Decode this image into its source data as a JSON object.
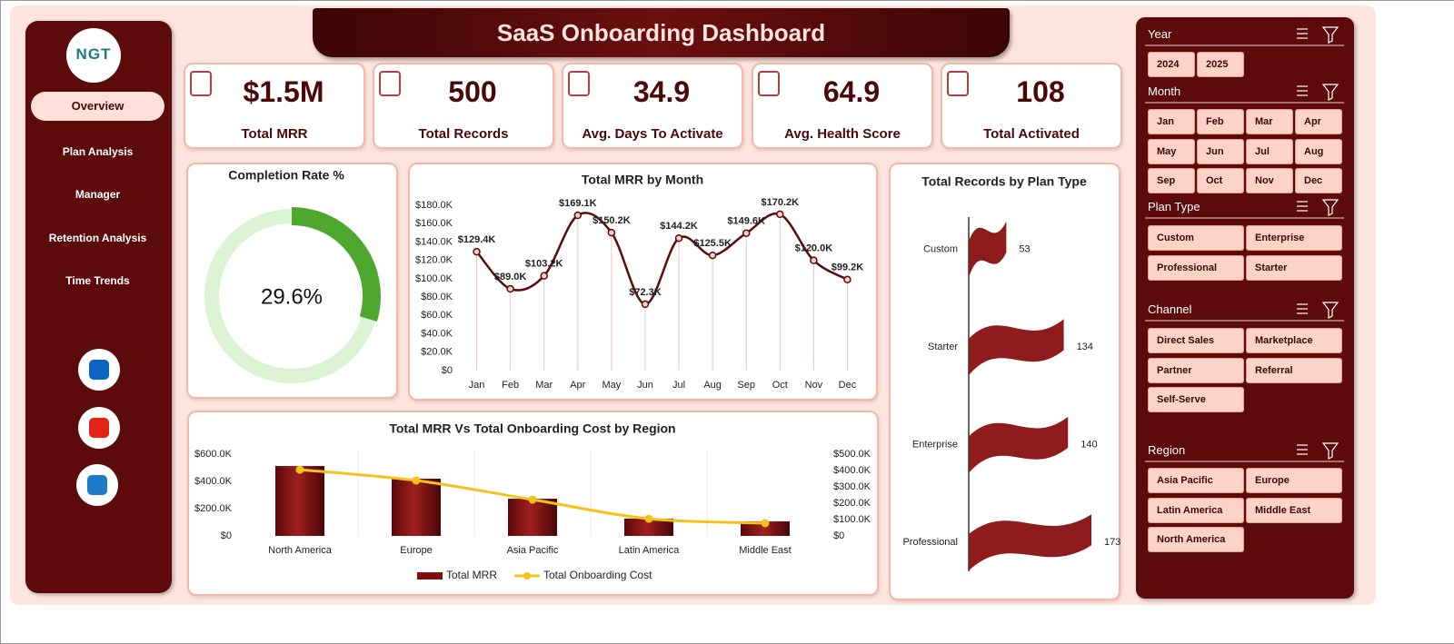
{
  "header": {
    "title": "SaaS Onboarding Dashboard"
  },
  "sidebar": {
    "logo": "NGT",
    "nav": [
      "Overview",
      "Plan Analysis",
      "Manager",
      "Retention Analysis",
      "Time Trends"
    ]
  },
  "kpis": [
    {
      "value": "$1.5M",
      "label": "Total MRR"
    },
    {
      "value": 500,
      "label": "Total Records"
    },
    {
      "value": 34.9,
      "label": "Avg. Days To Activate"
    },
    {
      "value": 64.9,
      "label": "Avg. Health Score"
    },
    {
      "value": 108,
      "label": "Total Activated"
    }
  ],
  "chart_data": [
    {
      "type": "donut",
      "title": "Completion Rate %",
      "values": [
        29.6
      ],
      "value_labels": [
        "29.6%"
      ],
      "color": "#4ea72e",
      "track_color": "#dcf3d3"
    },
    {
      "type": "line",
      "title": "Total MRR by Month",
      "categories": [
        "Jan",
        "Feb",
        "Mar",
        "Apr",
        "May",
        "Jun",
        "Jul",
        "Aug",
        "Sep",
        "Oct",
        "Nov",
        "Dec"
      ],
      "values": [
        129400,
        89000,
        103200,
        169100,
        150200,
        72300,
        144200,
        125500,
        149600,
        170200,
        120000,
        99200
      ],
      "value_labels": [
        "$129.4K",
        "$89.0K",
        "$103.2K",
        "$169.1K",
        "$150.2K",
        "$72.3K",
        "$144.2K",
        "$125.5K",
        "$149.6K",
        "$170.2K",
        "$120.0K",
        "$99.2K"
      ],
      "color": "#5c0a0a",
      "ylim": [
        0,
        180000
      ],
      "yticks": [
        {
          "value": 0,
          "label": "$0"
        },
        {
          "value": 20000,
          "label": "$20.0K"
        },
        {
          "value": 40000,
          "label": "$40.0K"
        },
        {
          "value": 60000,
          "label": "$60.0K"
        },
        {
          "value": 80000,
          "label": "$80.0K"
        },
        {
          "value": 100000,
          "label": "$100.0K"
        },
        {
          "value": 120000,
          "label": "$120.0K"
        },
        {
          "value": 140000,
          "label": "$140.0K"
        },
        {
          "value": 160000,
          "label": "$160.0K"
        },
        {
          "value": 180000,
          "label": "$180.0K"
        }
      ],
      "grid": false
    },
    {
      "type": "combo",
      "title": "Total MRR Vs Total Onboarding Cost by Region",
      "categories": [
        "North America",
        "Europe",
        "Asia Pacific",
        "Latin America",
        "Middle East"
      ],
      "series": [
        {
          "name": "Total MRR",
          "type": "bar",
          "color": "#7a1010",
          "values": [
            513000,
            420000,
            273000,
            127000,
            107000
          ]
        },
        {
          "name": "Total Onboarding Cost",
          "type": "line",
          "axis": "y2",
          "color": "#f4c21b",
          "values": [
            405000,
            339000,
            222000,
            105000,
            78000
          ]
        }
      ],
      "ylim": [
        0,
        600000
      ],
      "yticks": [
        {
          "value": 0,
          "label": "$0"
        },
        {
          "value": 200000,
          "label": "$200.0K"
        },
        {
          "value": 400000,
          "label": "$400.0K"
        },
        {
          "value": 600000,
          "label": "$600.0K"
        }
      ],
      "y2lim": [
        0,
        500000
      ],
      "y2ticks": [
        {
          "value": 0,
          "label": "$0"
        },
        {
          "value": 100000,
          "label": "$100.0K"
        },
        {
          "value": 200000,
          "label": "$200.0K"
        },
        {
          "value": 300000,
          "label": "$300.0K"
        },
        {
          "value": 400000,
          "label": "$400.0K"
        },
        {
          "value": 500000,
          "label": "$500.0K"
        }
      ],
      "legend": "bottom"
    },
    {
      "type": "hbar",
      "title": "Total Records by Plan Type",
      "categories": [
        "Custom",
        "Starter",
        "Enterprise",
        "Professional"
      ],
      "values": [
        53,
        134,
        140,
        173
      ],
      "color": "#8e1c1c"
    }
  ],
  "slicers": [
    {
      "title": "Year",
      "items": [
        "2024",
        "2025"
      ]
    },
    {
      "title": "Month",
      "items": [
        "Jan",
        "Feb",
        "Mar",
        "Apr",
        "May",
        "Jun",
        "Jul",
        "Aug",
        "Sep",
        "Oct",
        "Nov",
        "Dec"
      ]
    },
    {
      "title": "Plan Type",
      "items": [
        "Custom",
        "Enterprise",
        "Professional",
        "Starter"
      ]
    },
    {
      "title": "Channel",
      "items": [
        "Direct Sales",
        "Marketplace",
        "Partner",
        "Referral",
        "Self-Serve"
      ]
    },
    {
      "title": "Region",
      "items": [
        "Asia Pacific",
        "Europe",
        "Latin America",
        "Middle East",
        "North America"
      ]
    }
  ]
}
